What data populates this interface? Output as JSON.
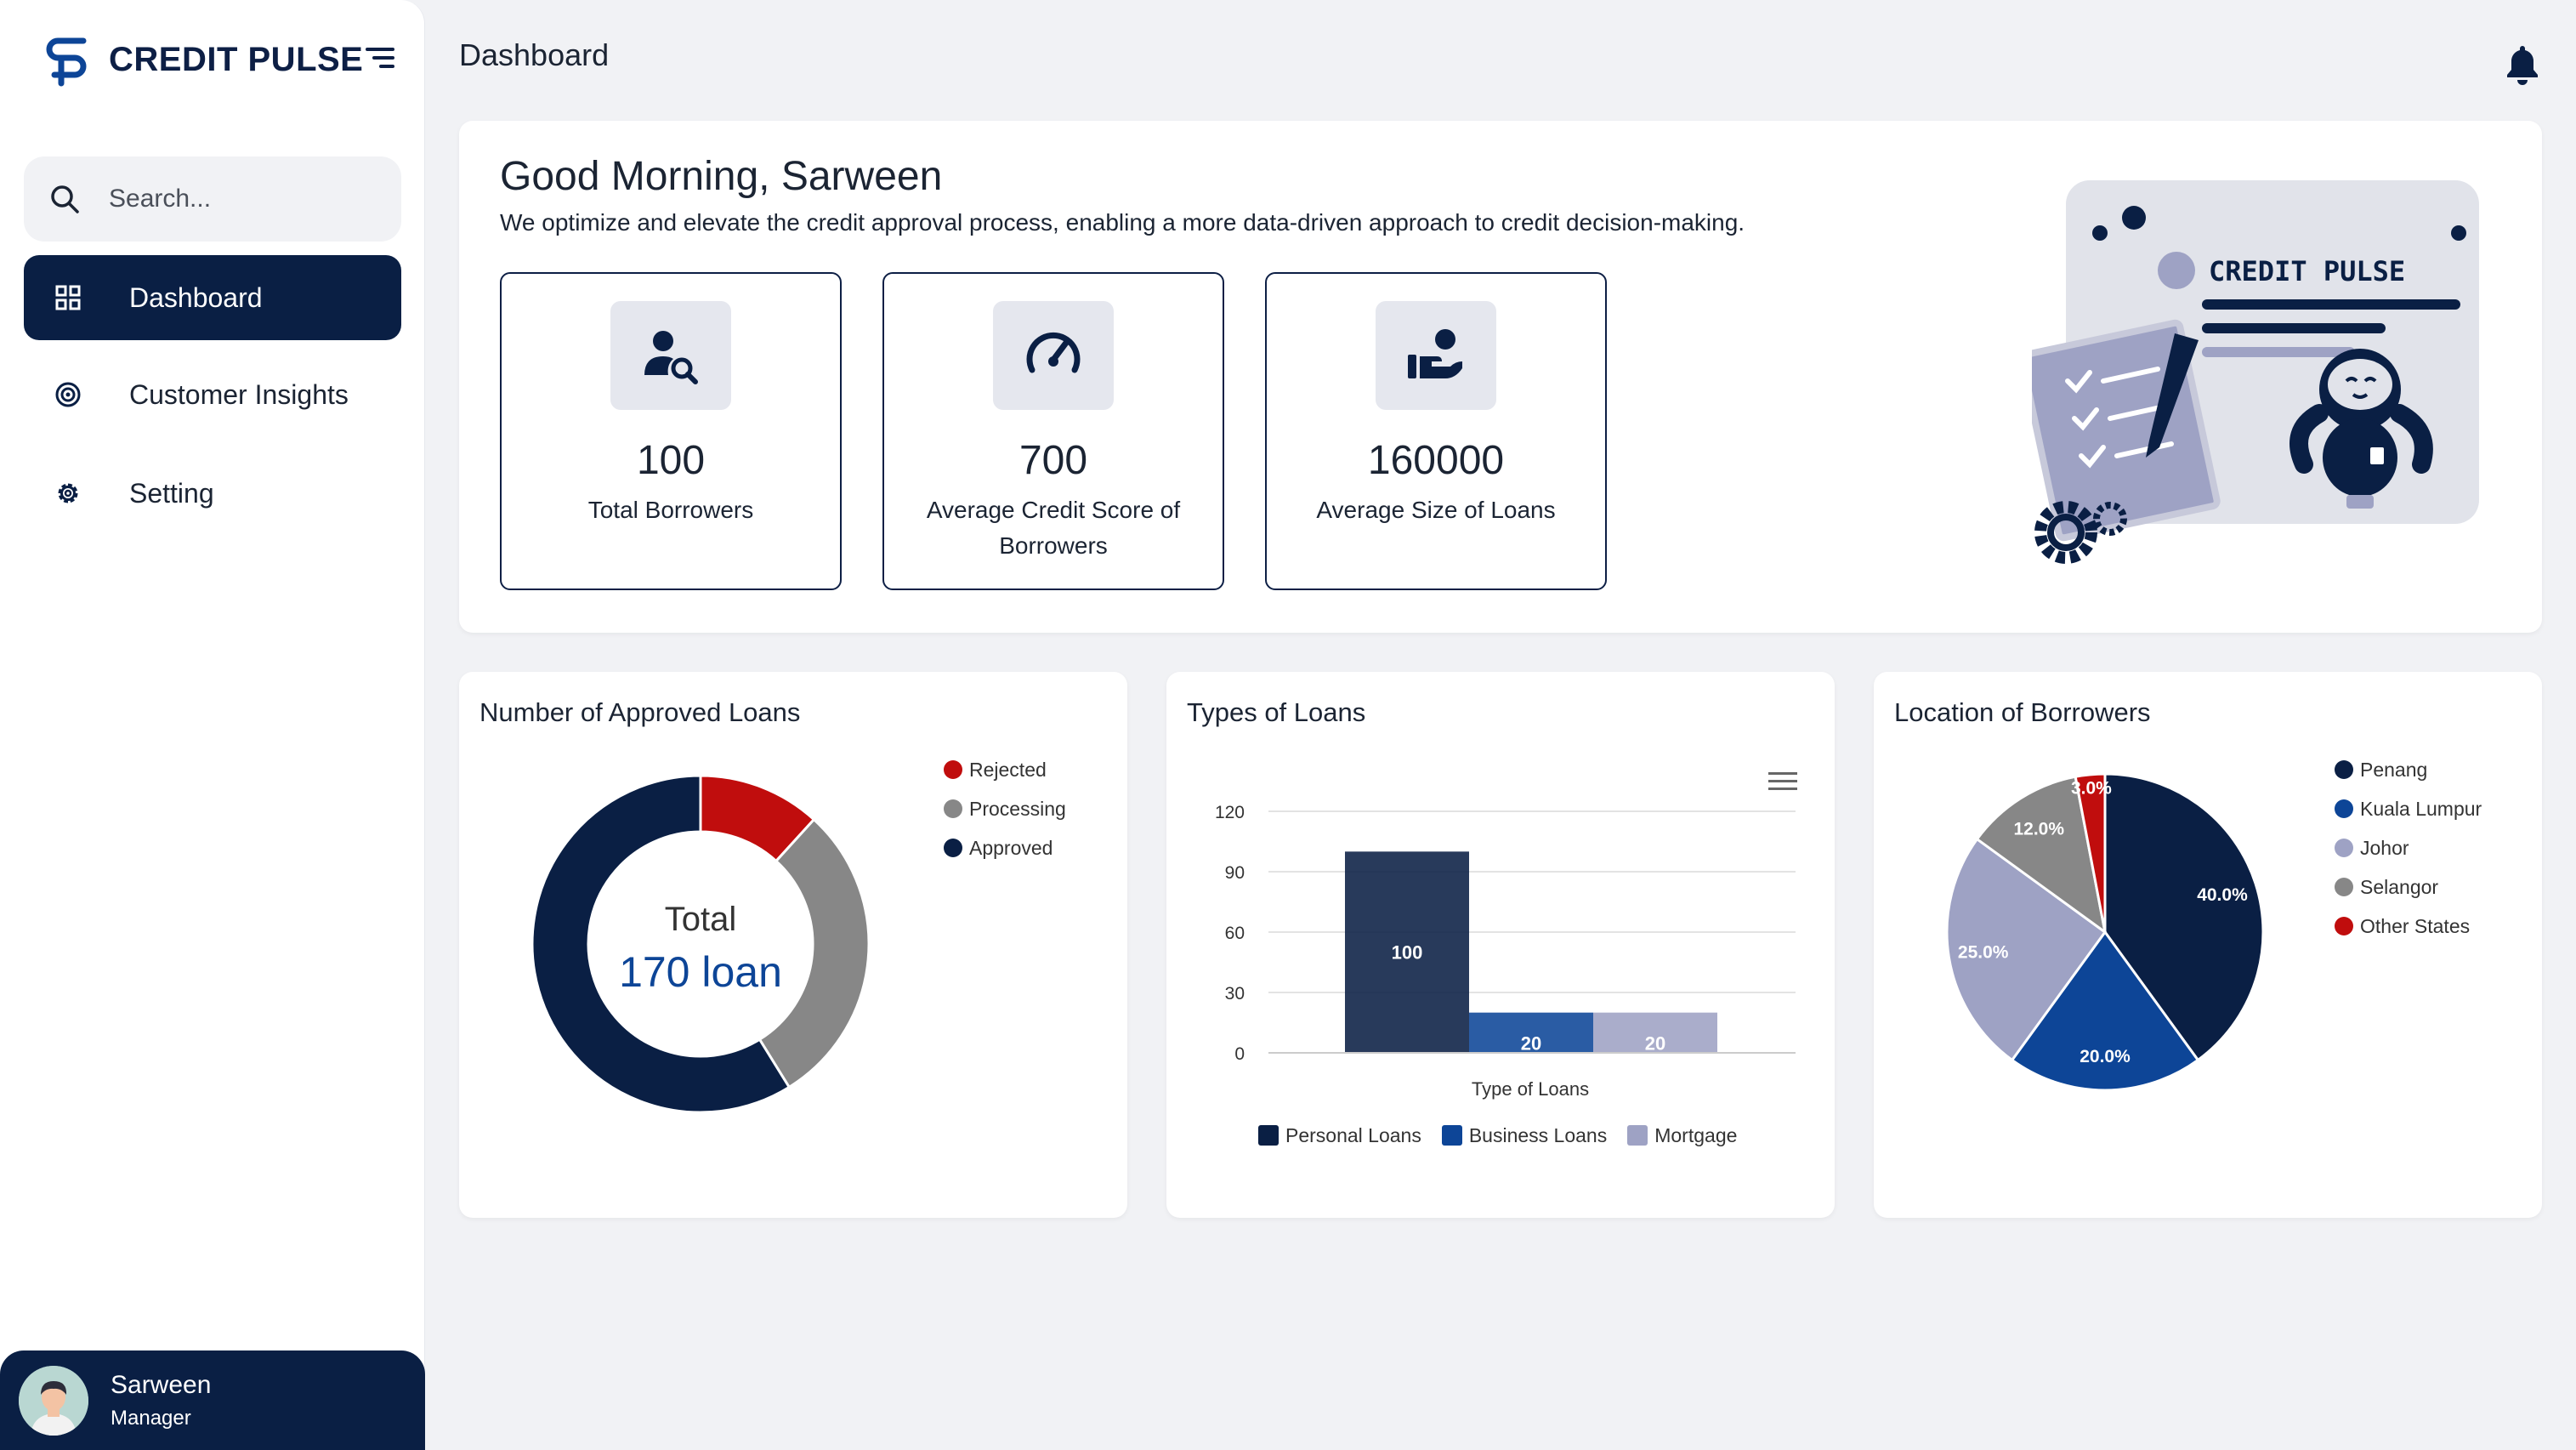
{
  "brand": {
    "name": "CREDIT PULSE"
  },
  "search": {
    "placeholder": "Search..."
  },
  "nav": [
    {
      "label": "Dashboard",
      "icon": "grid-icon",
      "active": true
    },
    {
      "label": "Customer Insights",
      "icon": "target-icon",
      "active": false
    },
    {
      "label": "Setting",
      "icon": "gear-icon",
      "active": false
    }
  ],
  "user": {
    "name": "Sarween",
    "role": "Manager"
  },
  "header": {
    "title": "Dashboard"
  },
  "welcome": {
    "greeting": "Good Morning, Sarween",
    "tagline": "We optimize and elevate the credit approval process, enabling a more data-driven approach to credit decision-making.",
    "illustration_text": "CREDIT PULSE"
  },
  "stats": [
    {
      "value": "100",
      "label": "Total Borrowers",
      "icon": "user-search-icon"
    },
    {
      "value": "700",
      "label": "Average Credit Score of Borrowers",
      "icon": "speedometer-icon"
    },
    {
      "value": "160000",
      "label": "Average Size of Loans",
      "icon": "hand-money-icon"
    }
  ],
  "colors": {
    "navy": "#0a1f44",
    "blue": "#0d4597",
    "red": "#c00d0d",
    "grey": "#878787",
    "lavender": "#9ea2c4"
  },
  "chart_data": [
    {
      "type": "donut",
      "title": "Number of Approved Loans",
      "center_label": "Total",
      "center_value": "170 loan",
      "categories": [
        "Rejected",
        "Processing",
        "Approved"
      ],
      "values": [
        20,
        50,
        100
      ],
      "colors": [
        "#c00d0d",
        "#878787",
        "#0a1f44"
      ],
      "legend_position": "right"
    },
    {
      "type": "bar",
      "title": "Types of Loans",
      "categories": [
        "Personal Loans",
        "Business Loans",
        "Mortgage"
      ],
      "values": [
        100,
        20,
        20
      ],
      "colors": [
        "#0a1f44",
        "#0d4597",
        "#9ea2c4"
      ],
      "xlabel": "Type of Loans",
      "ylabel": "",
      "ylim": [
        0,
        120
      ],
      "yticks": [
        "0",
        "30",
        "60",
        "90",
        "120"
      ],
      "grid": true,
      "legend_position": "bottom"
    },
    {
      "type": "pie",
      "title": "Location of Borrowers",
      "categories": [
        "Penang",
        "Kuala Lumpur",
        "Johor",
        "Selangor",
        "Other States"
      ],
      "values": [
        40.0,
        20.0,
        25.0,
        12.0,
        3.0
      ],
      "labels": [
        "40.0%",
        "20.0%",
        "25.0%",
        "12.0%",
        "3.0%"
      ],
      "colors": [
        "#0a1f44",
        "#0d4597",
        "#9ea2c4",
        "#878787",
        "#c00d0d"
      ],
      "legend_position": "right"
    }
  ]
}
